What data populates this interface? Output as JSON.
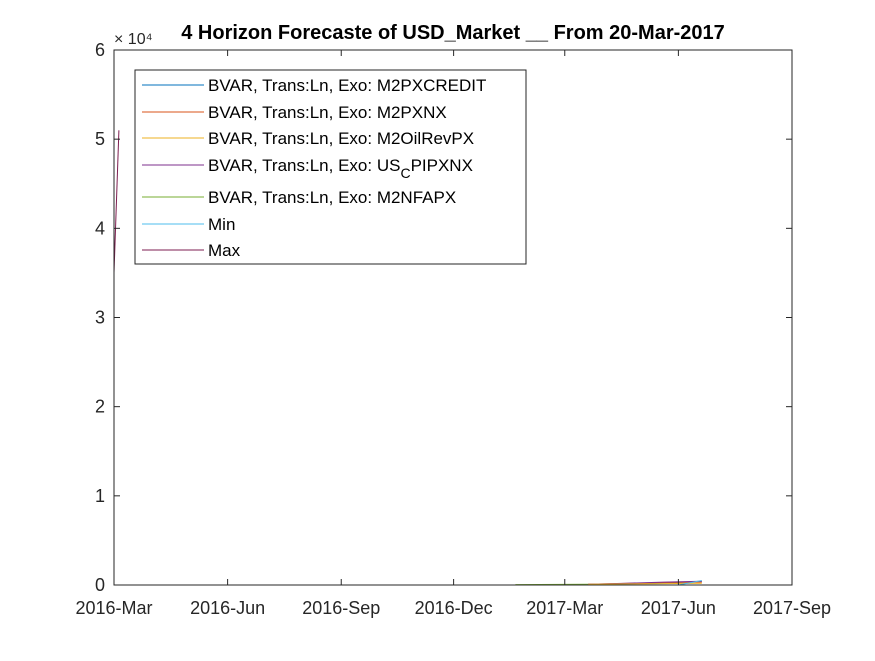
{
  "chart_data": {
    "type": "line",
    "title": "4 Horizon Forecaste of USD_Market __ From 20-Mar-2017",
    "xlabel": "",
    "ylabel": "",
    "y_exponent": "× 10⁴",
    "x_tick_labels": [
      "2016-Mar",
      "2016-Jun",
      "2016-Sep",
      "2016-Dec",
      "2017-Mar",
      "2017-Jun",
      "2017-Sep"
    ],
    "x_tick_dates": [
      "2016-03-01",
      "2016-06-01",
      "2016-09-01",
      "2016-12-01",
      "2017-03-01",
      "2017-06-01",
      "2017-09-01"
    ],
    "xlim": [
      "2016-03-01",
      "2017-09-01"
    ],
    "y_tick_labels": [
      "0",
      "1",
      "2",
      "3",
      "4",
      "5",
      "6"
    ],
    "ylim": [
      0,
      60000
    ],
    "grid": false,
    "legend_position": "top-left",
    "legend": [
      {
        "name": "BVAR, Trans:Ln, Exo: M2PXCREDIT",
        "color": "#0072BD"
      },
      {
        "name": "BVAR, Trans:Ln, Exo: M2PXNX",
        "color": "#D95319"
      },
      {
        "name": "BVAR, Trans:Ln, Exo: M2OilRevPX",
        "color": "#EDB120"
      },
      {
        "name_main": "BVAR, Trans:Ln, Exo: US",
        "name_sub": "C",
        "name_tail": "PIPXNX",
        "color": "#7E2F8E"
      },
      {
        "name": "BVAR, Trans:Ln, Exo: M2NFAPX",
        "color": "#77AC30"
      },
      {
        "name": "Min",
        "color": "#4DBEEE"
      },
      {
        "name": "Max",
        "color": "#7E1E50"
      }
    ],
    "series": [
      {
        "color": "#77AC30",
        "x": [
          "2017-01-20",
          "2017-03-20"
        ],
        "y": [
          50,
          80
        ]
      },
      {
        "color": "#0072BD",
        "x": [
          "2017-03-20",
          "2017-04-20",
          "2017-05-20",
          "2017-06-20"
        ],
        "y": [
          80,
          150,
          250,
          350
        ]
      },
      {
        "color": "#D95319",
        "x": [
          "2017-03-20",
          "2017-04-20",
          "2017-05-20",
          "2017-06-20"
        ],
        "y": [
          80,
          180,
          280,
          320
        ]
      },
      {
        "color": "#7E2F8E",
        "x": [
          "2017-03-20",
          "2017-04-20",
          "2017-05-20",
          "2017-06-20"
        ],
        "y": [
          80,
          200,
          330,
          420
        ]
      },
      {
        "color": "#EDB120",
        "x": [
          "2017-03-20",
          "2017-04-20",
          "2017-05-20",
          "2017-06-20"
        ],
        "y": [
          80,
          120,
          160,
          200
        ]
      },
      {
        "color": "#4DBEEE",
        "x": [
          "2017-06-01",
          "2017-06-20"
        ],
        "y": [
          0,
          500
        ]
      },
      {
        "color": "#7E1E50",
        "x": [
          "2016-03-01",
          "2016-03-05"
        ],
        "y": [
          35000,
          51000
        ]
      }
    ]
  }
}
